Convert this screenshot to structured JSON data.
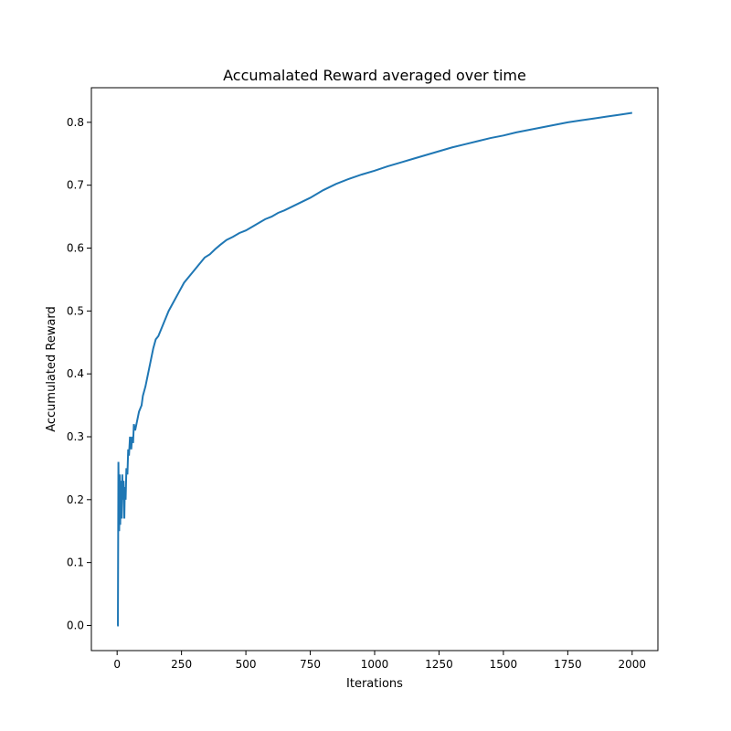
{
  "chart_data": {
    "type": "line",
    "title": "Accumalated Reward averaged over time",
    "xlabel": "Iterations",
    "ylabel": "Accumulated Reward",
    "xlim": [
      -100,
      2100
    ],
    "ylim": [
      -0.04,
      0.855
    ],
    "xticks": [
      0,
      250,
      500,
      750,
      1000,
      1250,
      1500,
      1750,
      2000
    ],
    "yticks": [
      0.0,
      0.1,
      0.2,
      0.3,
      0.4,
      0.5,
      0.6,
      0.7,
      0.8
    ],
    "ytick_labels": [
      "0.0",
      "0.1",
      "0.2",
      "0.3",
      "0.4",
      "0.5",
      "0.6",
      "0.7",
      "0.8"
    ],
    "grid": false,
    "line_color": "#1f77b4",
    "series": [
      {
        "x": [
          0,
          3,
          5,
          8,
          10,
          12,
          15,
          18,
          20,
          22,
          25,
          28,
          30,
          33,
          36,
          40,
          43,
          46,
          50,
          55,
          58,
          62,
          65,
          70,
          75,
          80,
          85,
          90,
          95,
          100,
          110,
          120,
          130,
          140,
          150,
          160,
          170,
          180,
          190,
          200,
          220,
          240,
          260,
          280,
          300,
          320,
          340,
          360,
          380,
          400,
          425,
          450,
          475,
          500,
          525,
          550,
          575,
          600,
          625,
          650,
          700,
          750,
          800,
          850,
          900,
          950,
          1000,
          1050,
          1100,
          1150,
          1200,
          1250,
          1300,
          1350,
          1400,
          1450,
          1500,
          1550,
          1600,
          1650,
          1700,
          1750,
          1800,
          1850,
          1900,
          1950,
          2000
        ],
        "values": [
          0.0,
          0.0,
          0.26,
          0.15,
          0.24,
          0.16,
          0.23,
          0.17,
          0.24,
          0.2,
          0.23,
          0.17,
          0.22,
          0.2,
          0.25,
          0.24,
          0.28,
          0.27,
          0.3,
          0.28,
          0.3,
          0.29,
          0.32,
          0.31,
          0.32,
          0.33,
          0.34,
          0.345,
          0.35,
          0.365,
          0.38,
          0.4,
          0.42,
          0.44,
          0.455,
          0.46,
          0.47,
          0.48,
          0.49,
          0.5,
          0.515,
          0.53,
          0.545,
          0.555,
          0.565,
          0.575,
          0.585,
          0.59,
          0.598,
          0.605,
          0.613,
          0.618,
          0.624,
          0.628,
          0.634,
          0.64,
          0.646,
          0.65,
          0.656,
          0.66,
          0.67,
          0.68,
          0.692,
          0.702,
          0.71,
          0.717,
          0.723,
          0.73,
          0.736,
          0.742,
          0.748,
          0.754,
          0.76,
          0.765,
          0.77,
          0.775,
          0.779,
          0.784,
          0.788,
          0.792,
          0.796,
          0.8,
          0.803,
          0.806,
          0.809,
          0.812,
          0.815
        ]
      }
    ]
  }
}
